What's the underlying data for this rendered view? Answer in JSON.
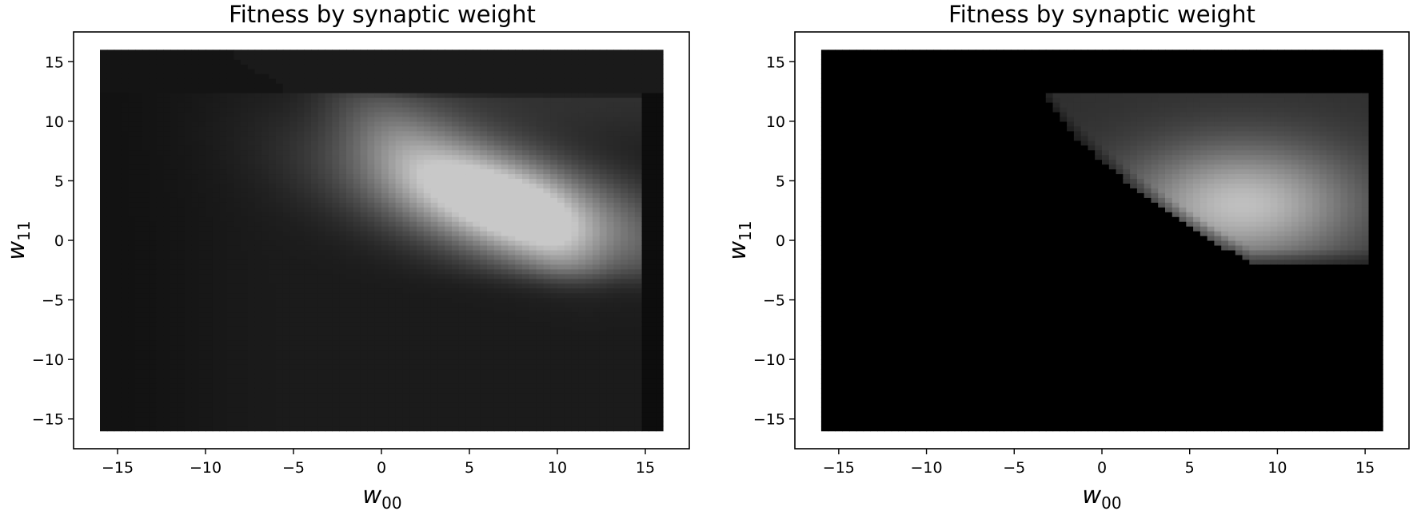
{
  "chart_data": [
    {
      "type": "heatmap",
      "title": "Fitness by synaptic weight",
      "xlabel": "w00",
      "ylabel": "w11",
      "xlabel_main": "w",
      "xlabel_sub": "00",
      "ylabel_main": "w",
      "ylabel_sub": "11",
      "xlim": [
        -17.5,
        17.5
      ],
      "ylim": [
        -17.5,
        17.5
      ],
      "data_extent": {
        "x": [
          -16,
          16
        ],
        "y": [
          -16,
          16
        ]
      },
      "xticks": [
        -15,
        -10,
        -5,
        0,
        5,
        10,
        15
      ],
      "yticks": [
        -15,
        -10,
        -5,
        0,
        5,
        10,
        15
      ],
      "xtick_labels": [
        "−15",
        "−10",
        "−5",
        "0",
        "5",
        "10",
        "15"
      ],
      "ytick_labels": [
        "−15",
        "−10",
        "−5",
        "0",
        "5",
        "10",
        "15"
      ],
      "colormap": "gray",
      "grid": false,
      "regions": {
        "background_level": 0.07,
        "plateau_top_y": 12.3,
        "plateau_right_x": 14.7,
        "peak": {
          "x": 7,
          "y": 3
        },
        "peak_level": 0.68,
        "low_boundary_y": -2.2
      }
    },
    {
      "type": "heatmap",
      "title": "Fitness by synaptic weight",
      "xlabel": "w00",
      "ylabel": "w11",
      "xlabel_main": "w",
      "xlabel_sub": "00",
      "ylabel_main": "w",
      "ylabel_sub": "11",
      "xlim": [
        -17.5,
        17.5
      ],
      "ylim": [
        -17.5,
        17.5
      ],
      "data_extent": {
        "x": [
          -16,
          16
        ],
        "y": [
          -16,
          16
        ]
      },
      "xticks": [
        -15,
        -10,
        -5,
        0,
        5,
        10,
        15
      ],
      "yticks": [
        -15,
        -10,
        -5,
        0,
        5,
        10,
        15
      ],
      "xtick_labels": [
        "−15",
        "−10",
        "−5",
        "0",
        "5",
        "10",
        "15"
      ],
      "ytick_labels": [
        "−15",
        "−10",
        "−5",
        "0",
        "5",
        "10",
        "15"
      ],
      "colormap": "gray",
      "grid": false,
      "regions": {
        "background_level": 0.0,
        "nonzero_region_x": [
          -3.2,
          15
        ],
        "nonzero_region_y": [
          -2,
          12.5
        ],
        "peak": {
          "x": 8,
          "y": 3
        },
        "peak_level": 0.75
      }
    }
  ]
}
